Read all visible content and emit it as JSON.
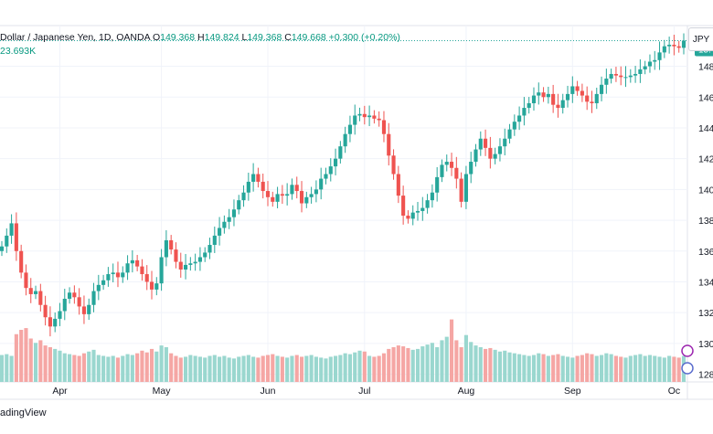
{
  "header": {
    "title": "Dollar / Japanese Yen, 1D, OANDA",
    "open_label": "O",
    "open": "149.368",
    "high_label": "H",
    "high": "149.824",
    "low_label": "L",
    "low": "149.368",
    "close_label": "C",
    "close": "149.668",
    "change": "+0.300 (+0.20%)",
    "volume": "23.693K"
  },
  "currency_badge": "JPY",
  "price_label": {
    "line1": "149",
    "line2": "15:"
  },
  "footer_text": "adingView",
  "colors": {
    "up": "#26a69a",
    "down": "#ef5350",
    "vol_up": "#9ad7cf",
    "vol_down": "#f5a6a4",
    "grid": "#f0f3fa",
    "last_line": "#26a69a"
  },
  "chart_data": {
    "type": "candlestick",
    "symbol": "USD/JPY",
    "interval": "1D",
    "y_ticks": [
      128,
      130,
      132,
      134,
      136,
      138,
      140,
      142,
      144,
      146,
      148
    ],
    "ylim": [
      127.5,
      151
    ],
    "x_tick_labels": [
      {
        "label": "Apr",
        "index": 12
      },
      {
        "label": "May",
        "index": 33
      },
      {
        "label": "Jun",
        "index": 55
      },
      {
        "label": "Jul",
        "index": 75
      },
      {
        "label": "Aug",
        "index": 96
      },
      {
        "label": "Sep",
        "index": 118
      },
      {
        "label": "Oc",
        "index": 139
      }
    ],
    "last_price": 149.668,
    "closes": [
      136.3,
      137.0,
      137.8,
      136.0,
      134.6,
      133.6,
      133.2,
      133.4,
      132.5,
      131.7,
      131.1,
      131.6,
      132.1,
      132.9,
      133.3,
      133.0,
      132.4,
      131.9,
      132.5,
      133.4,
      133.8,
      134.1,
      134.5,
      134.6,
      134.3,
      134.6,
      135.2,
      135.4,
      135.0,
      134.5,
      134.0,
      133.5,
      133.9,
      135.6,
      136.7,
      136.1,
      135.3,
      134.8,
      135.1,
      135.2,
      135.3,
      135.6,
      135.9,
      136.4,
      137.0,
      137.5,
      137.9,
      138.2,
      138.7,
      139.3,
      139.8,
      140.5,
      141.0,
      140.5,
      139.9,
      139.5,
      139.2,
      139.7,
      139.6,
      139.7,
      140.3,
      139.9,
      139.1,
      139.5,
      139.7,
      140.0,
      140.7,
      141.0,
      141.5,
      142.0,
      142.8,
      143.6,
      144.2,
      144.8,
      144.9,
      144.7,
      144.8,
      144.6,
      144.5,
      143.6,
      142.2,
      141.0,
      139.6,
      138.3,
      138.1,
      138.5,
      138.6,
      138.8,
      139.3,
      139.8,
      140.8,
      141.6,
      141.8,
      141.4,
      140.7,
      139.2,
      141.0,
      141.8,
      142.6,
      143.3,
      142.7,
      142.0,
      142.3,
      142.8,
      143.3,
      143.9,
      144.4,
      144.8,
      145.3,
      145.6,
      146.1,
      146.3,
      146.0,
      146.2,
      145.5,
      145.3,
      145.8,
      146.2,
      146.7,
      146.4,
      146.1,
      145.7,
      145.6,
      146.2,
      146.8,
      147.2,
      147.5,
      147.4,
      147.3,
      147.3,
      147.4,
      147.5,
      147.8,
      148.0,
      148.3,
      148.4,
      148.9,
      149.3,
      149.4,
      149.3,
      149.2,
      149.668
    ],
    "volume_profile": [
      0.31,
      0.32,
      0.3,
      0.55,
      0.6,
      0.62,
      0.5,
      0.45,
      0.48,
      0.42,
      0.4,
      0.38,
      0.36,
      0.33,
      0.32,
      0.31,
      0.3,
      0.33,
      0.35,
      0.37,
      0.31,
      0.3,
      0.29,
      0.3,
      0.28,
      0.3,
      0.32,
      0.31,
      0.33,
      0.36,
      0.34,
      0.38,
      0.35,
      0.42,
      0.4,
      0.33,
      0.3,
      0.28,
      0.29,
      0.31,
      0.3,
      0.29,
      0.28,
      0.3,
      0.31,
      0.29,
      0.3,
      0.28,
      0.27,
      0.29,
      0.3,
      0.31,
      0.29,
      0.28,
      0.3,
      0.31,
      0.32,
      0.3,
      0.29,
      0.28,
      0.3,
      0.31,
      0.29,
      0.3,
      0.31,
      0.29,
      0.28,
      0.27,
      0.29,
      0.3,
      0.31,
      0.33,
      0.32,
      0.34,
      0.36,
      0.35,
      0.3,
      0.29,
      0.3,
      0.33,
      0.38,
      0.4,
      0.42,
      0.41,
      0.39,
      0.37,
      0.38,
      0.41,
      0.43,
      0.45,
      0.4,
      0.48,
      0.52,
      0.72,
      0.48,
      0.4,
      0.54,
      0.46,
      0.42,
      0.4,
      0.38,
      0.39,
      0.37,
      0.35,
      0.36,
      0.34,
      0.33,
      0.32,
      0.31,
      0.3,
      0.31,
      0.33,
      0.32,
      0.3,
      0.31,
      0.32,
      0.3,
      0.29,
      0.28,
      0.3,
      0.31,
      0.33,
      0.32,
      0.3,
      0.31,
      0.33,
      0.32,
      0.3,
      0.29,
      0.28,
      0.3,
      0.31,
      0.32,
      0.3,
      0.31,
      0.3,
      0.29,
      0.28,
      0.3,
      0.29,
      0.28,
      0.3
    ]
  }
}
